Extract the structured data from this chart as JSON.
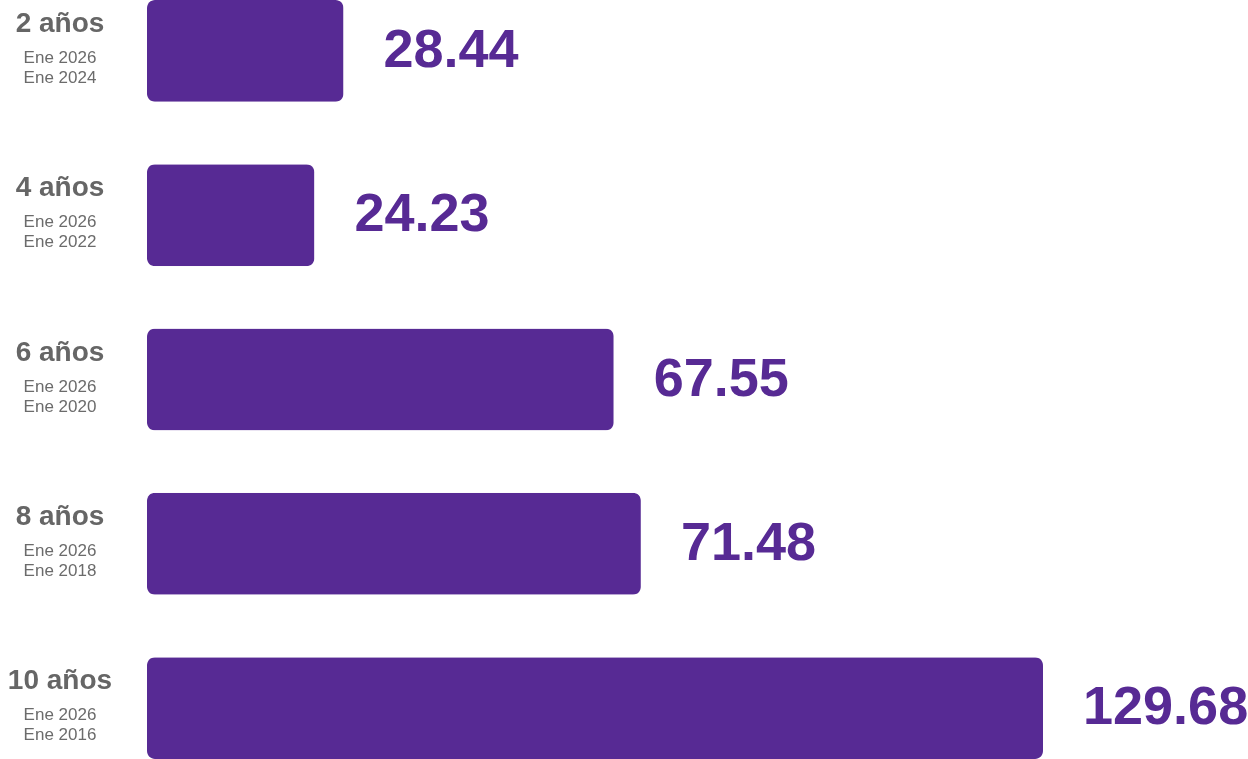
{
  "chart_data": {
    "type": "bar",
    "orientation": "horizontal",
    "categories": [
      "2 años\nEne 2026\nEne 2024",
      "4 años\nEne 2026\nEne 2022",
      "6 años\nEne 2026\nEne 2020",
      "8 años\nEne 2026\nEne 2018",
      "10 años\nEne 2026\nEne 2016"
    ],
    "values": [
      28.44,
      24.23,
      67.55,
      71.48,
      129.68
    ],
    "color": "#572a94",
    "data_labels": true
  }
}
